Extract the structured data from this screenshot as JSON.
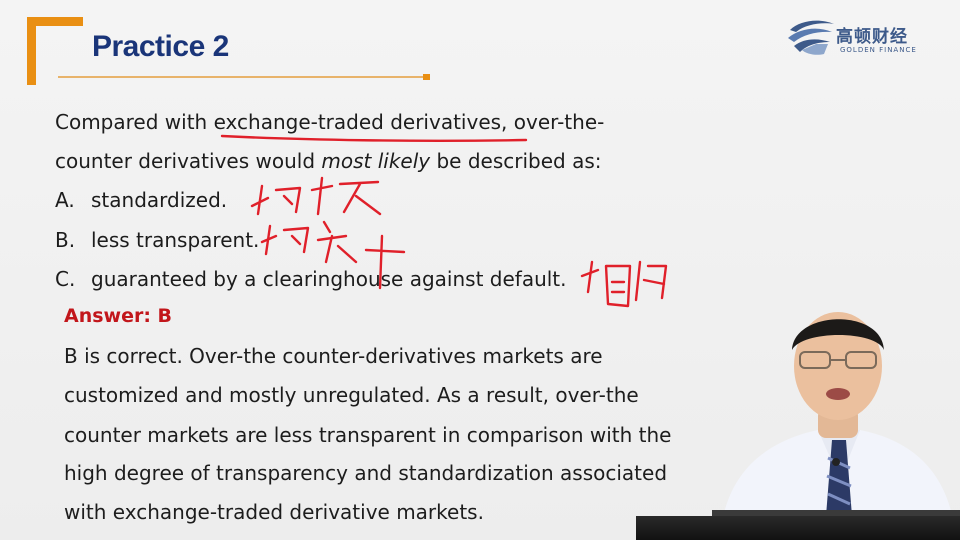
{
  "slide": {
    "title": "Practice 2",
    "logo": {
      "chinese": "高顿财经",
      "english": "GOLDEN FINANCE"
    },
    "question": {
      "line1_prefix": "Compared with ",
      "line1_underlined": "exchange-traded derivatives",
      "line1_suffix": ", over-the-",
      "line2_prefix": "counter derivatives would ",
      "line2_emphasis": "most likely",
      "line2_suffix": " be described as:"
    },
    "options": [
      {
        "letter": "A.",
        "text": "standardized."
      },
      {
        "letter": "B.",
        "text": "less transparent."
      },
      {
        "letter": "C.",
        "text": "guaranteed by a clearinghouse against default."
      }
    ],
    "answer_label": "Answer: B",
    "explanation": [
      "B is correct. Over-the counter-derivatives markets are",
      "customized and mostly unregulated. As a result, over-the",
      "counter markets are less transparent in comparison with the",
      "high degree of transparency and standardization associated",
      "with exchange-traded derivative markets."
    ]
  },
  "colors": {
    "title": "#1a3579",
    "accent_orange": "#e98f13",
    "answer_red": "#c2161b",
    "ink_red": "#e0202a"
  },
  "icons": [
    "golden-finance-logo-icon"
  ]
}
